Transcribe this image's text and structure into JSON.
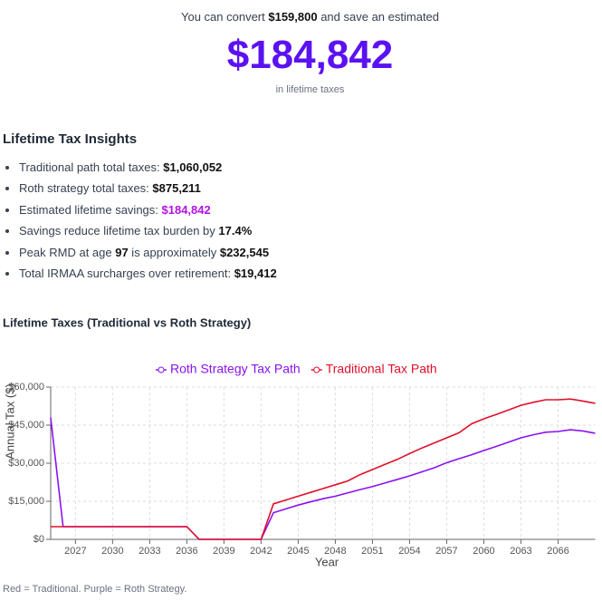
{
  "header": {
    "line": [
      "You can convert ",
      "$159,800",
      " and save an estimated"
    ],
    "amount": "$184,842",
    "caption": "in lifetime taxes"
  },
  "insights": {
    "title": "Lifetime Tax Insights",
    "items": [
      [
        "Traditional path total taxes: ",
        "$1,060,052"
      ],
      [
        "Roth strategy total taxes: ",
        "$875,211"
      ],
      [
        "Estimated lifetime savings: ",
        "$184,842"
      ],
      [
        "Savings reduce lifetime tax burden by ",
        "17.4%"
      ],
      [
        "Peak RMD at age ",
        "97",
        " is approximately ",
        "$232,545"
      ],
      [
        "Total IRMAA surcharges over retirement: ",
        "$19,412"
      ]
    ]
  },
  "chart_data": {
    "type": "line",
    "title": "Lifetime Taxes (Traditional vs Roth Strategy)",
    "xlabel": "Year",
    "ylabel": "Annual Tax ($)",
    "note": "Red = Traditional. Purple = Roth Strategy.",
    "x": [
      2025,
      2026,
      2027,
      2028,
      2029,
      2030,
      2031,
      2032,
      2033,
      2034,
      2035,
      2036,
      2037,
      2038,
      2039,
      2040,
      2041,
      2042,
      2043,
      2044,
      2045,
      2046,
      2047,
      2048,
      2049,
      2050,
      2051,
      2052,
      2053,
      2054,
      2055,
      2056,
      2057,
      2058,
      2059,
      2060,
      2061,
      2062,
      2063,
      2064,
      2065,
      2066,
      2067,
      2068,
      2069
    ],
    "series": [
      {
        "name": "Roth Strategy Tax Path",
        "color": "#8a12f0",
        "values": [
          48000,
          5000,
          5000,
          5000,
          5000,
          5000,
          5000,
          5000,
          5000,
          5000,
          5000,
          5000,
          0,
          0,
          0,
          0,
          0,
          0,
          10500,
          12000,
          13500,
          14800,
          16000,
          17000,
          18300,
          19600,
          20800,
          22200,
          23600,
          25000,
          26600,
          28200,
          30200,
          31800,
          33300,
          35000,
          36600,
          38300,
          40000,
          41200,
          42200,
          42500,
          43200,
          42700,
          41800
        ]
      },
      {
        "name": "Traditional Tax Path",
        "color": "#e0102a",
        "values": [
          5000,
          5000,
          5000,
          5000,
          5000,
          5000,
          5000,
          5000,
          5000,
          5000,
          5000,
          5000,
          0,
          0,
          0,
          0,
          0,
          0,
          14000,
          15500,
          17000,
          18500,
          20000,
          21500,
          23000,
          25500,
          27500,
          29500,
          31500,
          33800,
          36000,
          38000,
          40000,
          42000,
          45500,
          47500,
          49200,
          51000,
          52800,
          54000,
          55000,
          55000,
          55300,
          54500,
          53600
        ]
      }
    ],
    "xlim": [
      2025,
      2069
    ],
    "xticks": [
      2027,
      2030,
      2033,
      2036,
      2039,
      2042,
      2045,
      2048,
      2051,
      2054,
      2057,
      2060,
      2063,
      2066
    ],
    "ylim": [
      0,
      60000
    ],
    "yticks": [
      {
        "value": 0,
        "label": "$0"
      },
      {
        "value": 15000,
        "label": "$15,000"
      },
      {
        "value": 30000,
        "label": "$30,000"
      },
      {
        "value": 45000,
        "label": "$45,000"
      },
      {
        "value": 60000,
        "label": "$60,000"
      }
    ],
    "grid": true,
    "legend": "top"
  }
}
